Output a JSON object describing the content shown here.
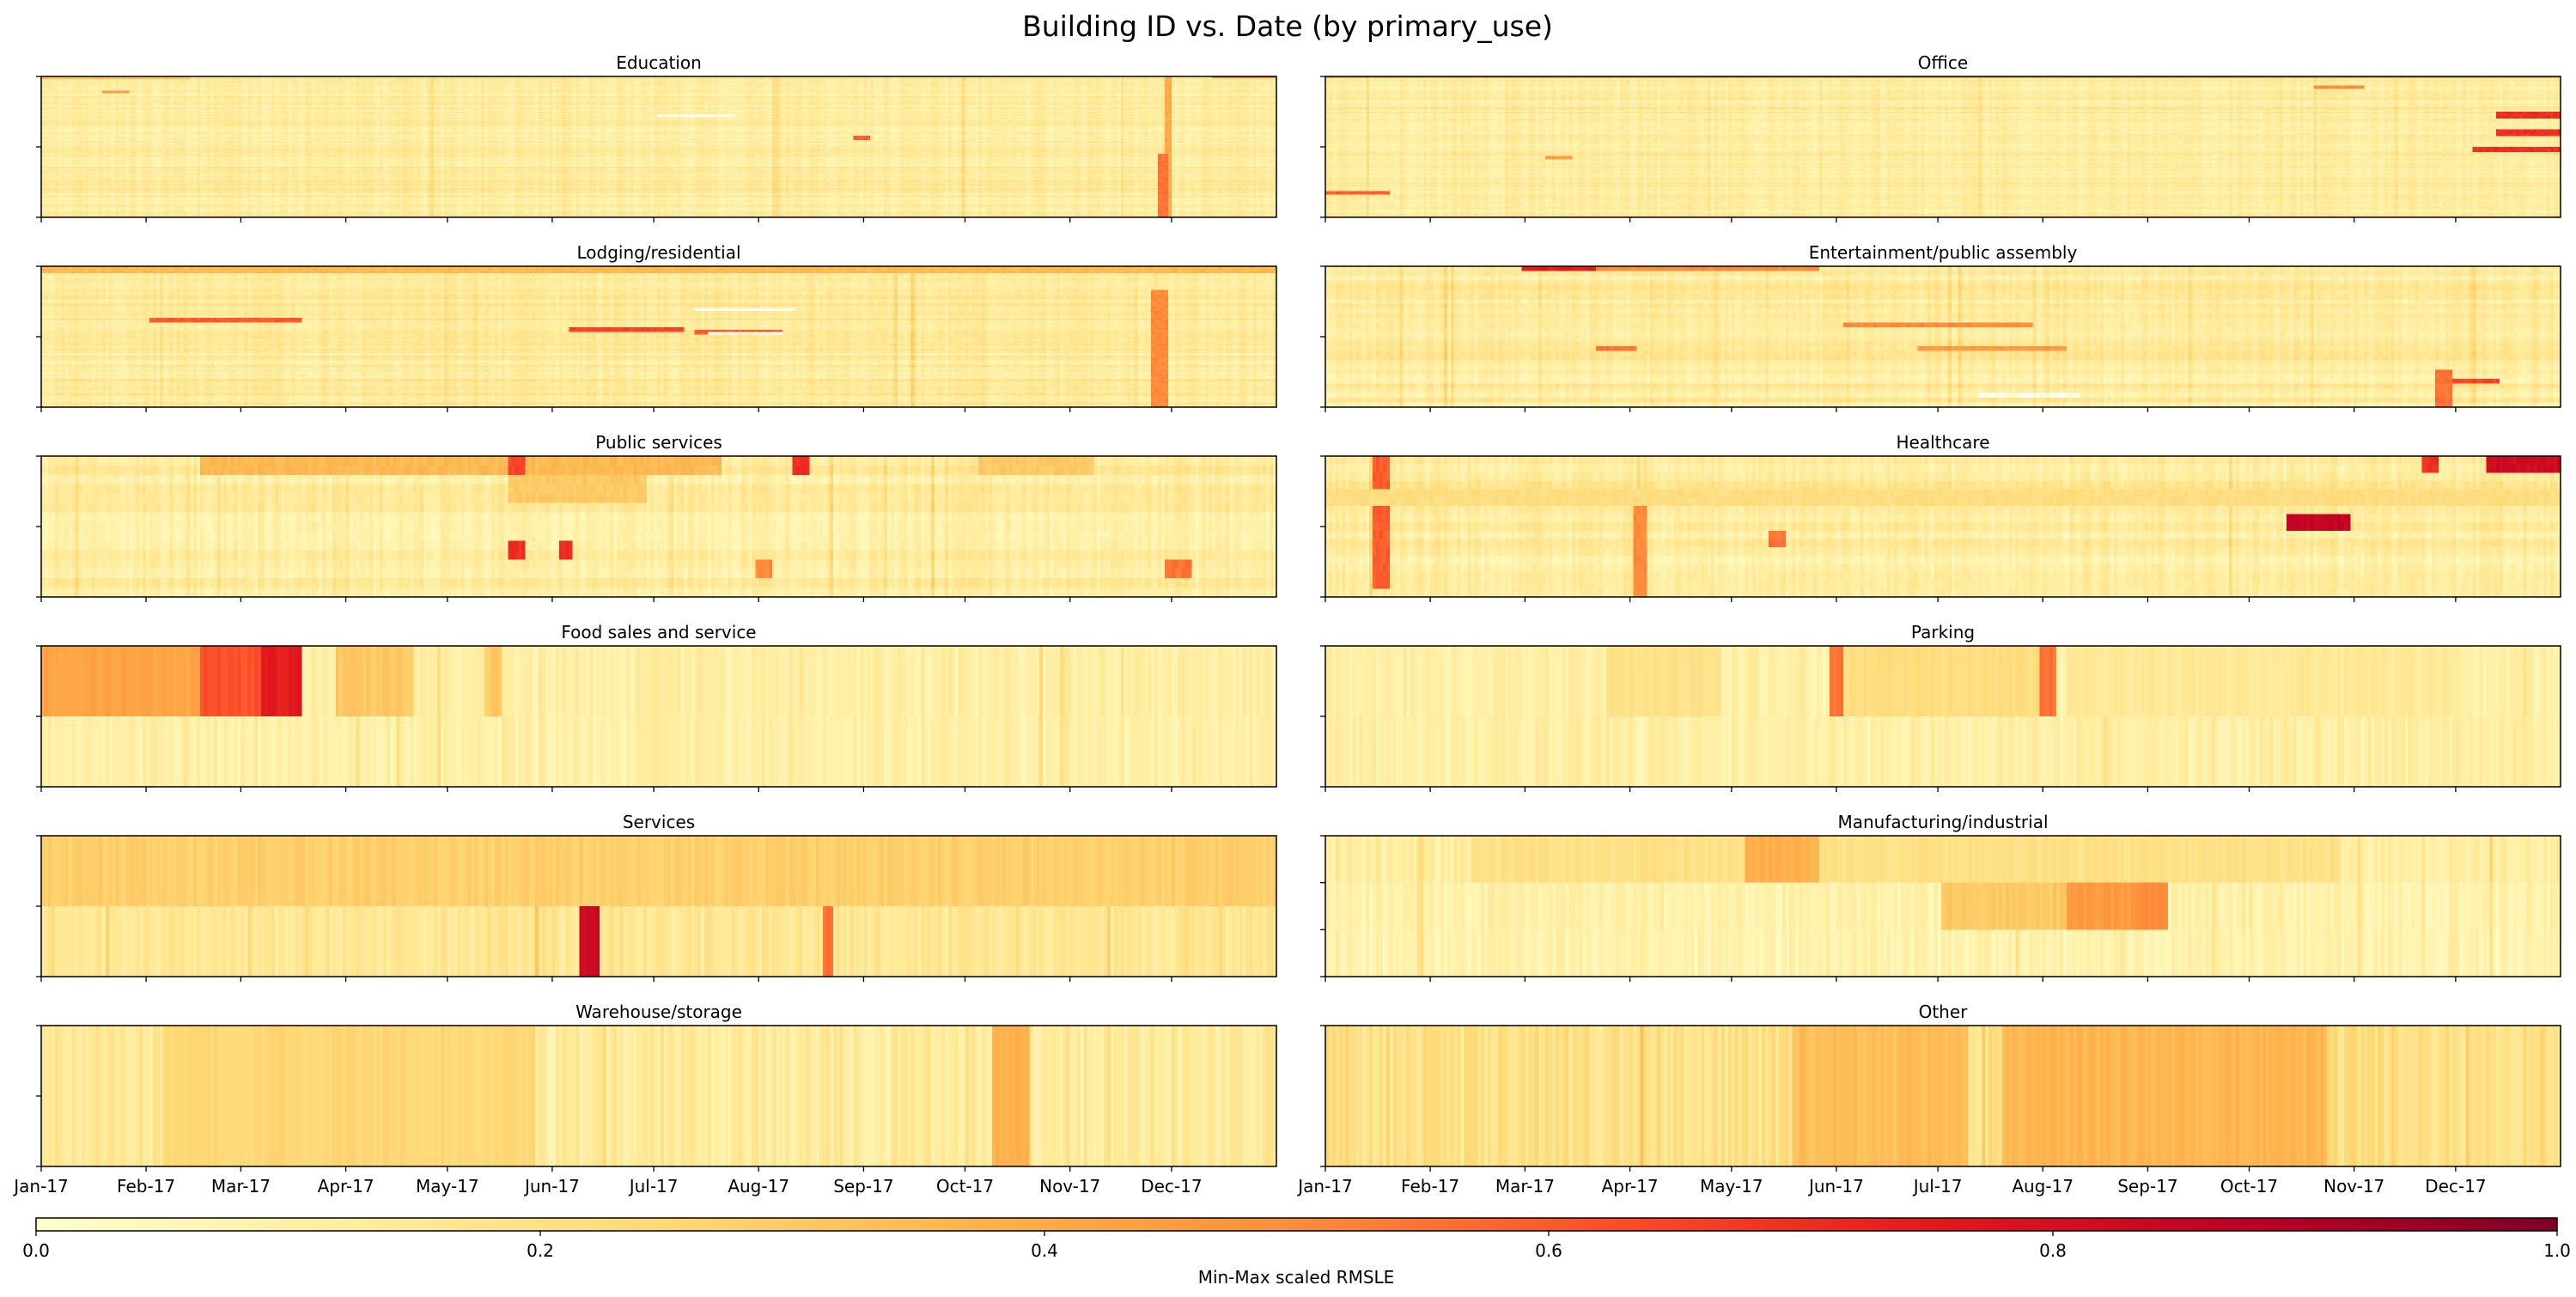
{
  "chart_data": {
    "type": "heatmap",
    "title": "Building ID vs. Date (by primary_use)",
    "xlabel": "",
    "ylabel": "",
    "colormap": [
      "#ffffcc",
      "#ffeda0",
      "#fed976",
      "#feb24c",
      "#fd8d3c",
      "#fc4e2a",
      "#e31a1c",
      "#bd0026",
      "#800026"
    ],
    "grid": false,
    "x_ticks": [
      "Jan-17",
      "Feb-17",
      "Mar-17",
      "Apr-17",
      "May-17",
      "Jun-17",
      "Jul-17",
      "Aug-17",
      "Sep-17",
      "Oct-17",
      "Nov-17",
      "Dec-17"
    ],
    "colorbar": {
      "label": "Min-Max scaled RMSLE",
      "range": [
        0.0,
        1.0
      ],
      "ticks": [
        "0.0",
        "0.2",
        "0.4",
        "0.6",
        "0.8",
        "1.0"
      ]
    },
    "panels": [
      {
        "title": "Education",
        "rows": 100,
        "yticks": 3,
        "base": 0.13,
        "rowvar": 0.05,
        "colvar": 0.03,
        "blocks": [
          [
            0.0,
            0.12,
            0,
            2,
            0.3
          ],
          [
            0.95,
            1.0,
            0,
            1,
            0.65
          ],
          [
            0.91,
            0.915,
            0,
            100,
            0.4
          ],
          [
            0.905,
            0.91,
            55,
            100,
            0.55
          ],
          [
            0.66,
            0.67,
            42,
            45,
            0.6
          ],
          [
            0.05,
            0.07,
            10,
            12,
            0.45
          ],
          [
            0.5,
            0.56,
            27,
            29,
            0.0
          ]
        ]
      },
      {
        "title": "Office",
        "rows": 80,
        "yticks": 3,
        "base": 0.13,
        "rowvar": 0.05,
        "colvar": 0.03,
        "blocks": [
          [
            0.0,
            1.0,
            0,
            1,
            0.4
          ],
          [
            0.95,
            1.0,
            20,
            24,
            0.7
          ],
          [
            0.95,
            1.0,
            30,
            34,
            0.7
          ],
          [
            0.93,
            1.0,
            40,
            43,
            0.7
          ],
          [
            0.8,
            0.84,
            5,
            7,
            0.5
          ],
          [
            0.0,
            0.05,
            65,
            67,
            0.6
          ],
          [
            0.18,
            0.2,
            45,
            47,
            0.45
          ]
        ]
      },
      {
        "title": "Lodging/residential",
        "rows": 60,
        "yticks": 3,
        "base": 0.14,
        "rowvar": 0.05,
        "colvar": 0.03,
        "blocks": [
          [
            0.0,
            1.0,
            0,
            3,
            0.35
          ],
          [
            0.09,
            0.21,
            22,
            24,
            0.6
          ],
          [
            0.43,
            0.52,
            26,
            28,
            0.65
          ],
          [
            0.53,
            0.6,
            27,
            29,
            0.6
          ],
          [
            0.53,
            0.61,
            18,
            19,
            0.0
          ],
          [
            0.54,
            0.6,
            28,
            29,
            0.0
          ],
          [
            0.9,
            0.91,
            10,
            60,
            0.5
          ]
        ]
      },
      {
        "title": "Entertainment/public assembly",
        "rows": 30,
        "yticks": 3,
        "base": 0.13,
        "rowvar": 0.05,
        "colvar": 0.03,
        "blocks": [
          [
            0.16,
            0.22,
            0,
            1,
            0.75
          ],
          [
            0.22,
            0.4,
            0,
            1,
            0.5
          ],
          [
            0.42,
            0.57,
            12,
            13,
            0.5
          ],
          [
            0.22,
            0.25,
            17,
            18,
            0.55
          ],
          [
            0.48,
            0.6,
            17,
            18,
            0.45
          ],
          [
            0.53,
            0.61,
            27,
            28,
            0.0
          ],
          [
            0.9,
            0.95,
            24,
            25,
            0.65
          ],
          [
            0.9,
            0.91,
            22,
            30,
            0.55
          ]
        ]
      },
      {
        "title": "Public services",
        "rows": 15,
        "yticks": 3,
        "base": 0.12,
        "rowvar": 0.05,
        "colvar": 0.04,
        "blocks": [
          [
            0.13,
            0.55,
            0,
            2,
            0.35
          ],
          [
            0.38,
            0.39,
            0,
            2,
            0.65
          ],
          [
            0.61,
            0.62,
            0,
            2,
            0.7
          ],
          [
            0.76,
            0.85,
            0,
            2,
            0.3
          ],
          [
            0.38,
            0.49,
            2,
            5,
            0.3
          ],
          [
            0.38,
            0.39,
            9,
            11,
            0.7
          ],
          [
            0.42,
            0.43,
            9,
            11,
            0.7
          ],
          [
            0.91,
            0.93,
            11,
            13,
            0.55
          ],
          [
            0.58,
            0.59,
            11,
            13,
            0.5
          ]
        ]
      },
      {
        "title": "Healthcare",
        "rows": 17,
        "yticks": 3,
        "base": 0.13,
        "rowvar": 0.05,
        "colvar": 0.04,
        "blocks": [
          [
            0.94,
            1.0,
            0,
            2,
            0.82
          ],
          [
            0.78,
            0.83,
            7,
            9,
            0.85
          ],
          [
            0.89,
            0.9,
            0,
            2,
            0.7
          ],
          [
            0.04,
            0.05,
            0,
            16,
            0.6
          ],
          [
            0.25,
            0.26,
            6,
            17,
            0.5
          ],
          [
            0.36,
            0.37,
            9,
            11,
            0.55
          ],
          [
            0.0,
            1.0,
            4,
            6,
            0.22
          ]
        ]
      },
      {
        "title": "Food sales and service",
        "rows": 2,
        "yticks": 3,
        "base": 0.1,
        "rowvar": 0.03,
        "colvar": 0.04,
        "blocks": [
          [
            0.0,
            0.21,
            0,
            1,
            0.42
          ],
          [
            0.13,
            0.2,
            0,
            1,
            0.62
          ],
          [
            0.18,
            0.21,
            0,
            1,
            0.75
          ],
          [
            0.24,
            0.3,
            0,
            1,
            0.3
          ],
          [
            0.36,
            0.37,
            0,
            1,
            0.3
          ]
        ]
      },
      {
        "title": "Parking",
        "rows": 2,
        "yticks": 3,
        "base": 0.09,
        "rowvar": 0.03,
        "colvar": 0.04,
        "blocks": [
          [
            0.23,
            0.32,
            0,
            1,
            0.2
          ],
          [
            0.41,
            0.42,
            0,
            1,
            0.55
          ],
          [
            0.42,
            0.58,
            0,
            1,
            0.22
          ],
          [
            0.58,
            0.59,
            0,
            1,
            0.55
          ],
          [
            0.6,
            0.91,
            0,
            1,
            0.15
          ]
        ]
      },
      {
        "title": "Services",
        "rows": 2,
        "yticks": 3,
        "base": 0.2,
        "rowvar": 0.05,
        "colvar": 0.04,
        "blocks": [
          [
            0.0,
            1.0,
            0,
            1,
            0.28
          ],
          [
            0.437,
            0.452,
            1,
            2,
            0.82
          ],
          [
            0.635,
            0.64,
            1,
            2,
            0.55
          ]
        ]
      },
      {
        "title": "Manufacturing/industrial",
        "rows": 3,
        "yticks": 4,
        "base": 0.1,
        "rowvar": 0.03,
        "colvar": 0.04,
        "blocks": [
          [
            0.12,
            0.82,
            0,
            1,
            0.2
          ],
          [
            0.37,
            0.38,
            0,
            1,
            0.6
          ],
          [
            0.34,
            0.4,
            0,
            1,
            0.38
          ],
          [
            0.5,
            0.68,
            1,
            2,
            0.3
          ],
          [
            0.6,
            0.66,
            1,
            2,
            0.45
          ],
          [
            0.66,
            0.68,
            1,
            2,
            0.5
          ]
        ]
      },
      {
        "title": "Warehouse/storage",
        "rows": 1,
        "yticks": 3,
        "base": 0.14,
        "rowvar": 0.0,
        "colvar": 0.06,
        "blocks": [
          [
            0.1,
            0.4,
            0,
            1,
            0.25
          ],
          [
            0.77,
            0.8,
            0,
            1,
            0.38
          ]
        ]
      },
      {
        "title": "Other",
        "rows": 1,
        "yticks": 2,
        "base": 0.2,
        "rowvar": 0.0,
        "colvar": 0.06,
        "blocks": [
          [
            0.38,
            0.52,
            0,
            1,
            0.34
          ],
          [
            0.55,
            0.81,
            0,
            1,
            0.36
          ]
        ]
      }
    ]
  }
}
